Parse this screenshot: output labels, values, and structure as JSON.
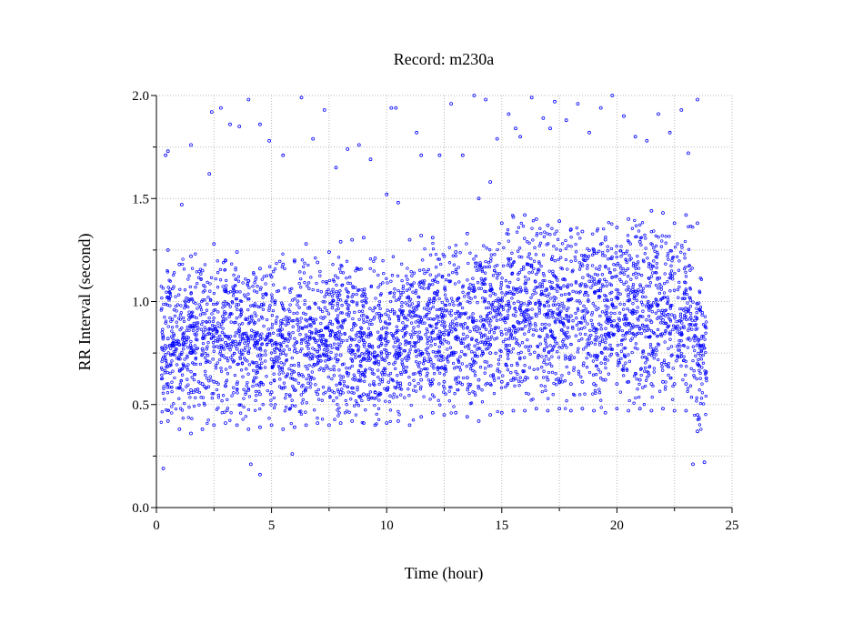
{
  "chart_data": {
    "type": "scatter",
    "title": "Record:  m230a",
    "xlabel": "Time (hour)",
    "ylabel": "RR Interval (second)",
    "xlim": [
      0,
      25
    ],
    "ylim": [
      0.0,
      2.0
    ],
    "x_ticks": [
      "0",
      "5",
      "10",
      "15",
      "20",
      "25"
    ],
    "y_ticks": [
      "0.0",
      "0.5",
      "1.0",
      "1.5",
      "2.0"
    ],
    "grid": true,
    "legend": "none",
    "marker_color": "#0000ff",
    "marker": "small hollow circle",
    "points": [
      [
        0.3,
        0.19
      ],
      [
        0.4,
        1.71
      ],
      [
        0.5,
        1.73
      ],
      [
        1.1,
        1.47
      ],
      [
        1.5,
        1.76
      ],
      [
        2.3,
        1.62
      ],
      [
        2.4,
        1.92
      ],
      [
        2.8,
        1.94
      ],
      [
        3.2,
        1.86
      ],
      [
        3.6,
        1.85
      ],
      [
        4.0,
        1.98
      ],
      [
        4.5,
        1.86
      ],
      [
        4.1,
        0.21
      ],
      [
        4.5,
        0.16
      ],
      [
        4.9,
        1.78
      ],
      [
        5.5,
        1.71
      ],
      [
        5.9,
        0.26
      ],
      [
        6.3,
        1.99
      ],
      [
        6.8,
        1.79
      ],
      [
        7.3,
        1.93
      ],
      [
        7.8,
        1.65
      ],
      [
        8.3,
        1.74
      ],
      [
        8.8,
        1.76
      ],
      [
        9.3,
        1.69
      ],
      [
        10.2,
        1.94
      ],
      [
        10.4,
        1.94
      ],
      [
        11.3,
        1.82
      ],
      [
        11.5,
        1.71
      ],
      [
        12.3,
        1.71
      ],
      [
        12.8,
        1.96
      ],
      [
        13.3,
        1.71
      ],
      [
        13.8,
        2.0
      ],
      [
        14.3,
        1.98
      ],
      [
        14.8,
        1.79
      ],
      [
        15.3,
        1.91
      ],
      [
        15.6,
        1.84
      ],
      [
        15.8,
        1.8
      ],
      [
        16.3,
        1.99
      ],
      [
        16.8,
        1.89
      ],
      [
        17.1,
        1.84
      ],
      [
        17.3,
        1.97
      ],
      [
        17.8,
        1.88
      ],
      [
        18.3,
        1.96
      ],
      [
        18.8,
        1.82
      ],
      [
        19.3,
        1.94
      ],
      [
        19.8,
        2.0
      ],
      [
        20.3,
        1.9
      ],
      [
        20.8,
        1.8
      ],
      [
        21.3,
        1.78
      ],
      [
        21.8,
        1.91
      ],
      [
        22.3,
        1.82
      ],
      [
        22.8,
        1.93
      ],
      [
        23.1,
        1.72
      ],
      [
        23.5,
        1.98
      ],
      [
        23.3,
        0.21
      ],
      [
        23.8,
        0.22
      ],
      [
        0.5,
        1.25
      ],
      [
        1.0,
        1.18
      ],
      [
        1.5,
        1.22
      ],
      [
        2.0,
        1.15
      ],
      [
        2.5,
        1.28
      ],
      [
        3.0,
        1.2
      ],
      [
        3.5,
        1.24
      ],
      [
        4.0,
        1.1
      ],
      [
        4.5,
        1.16
      ],
      [
        5.0,
        1.12
      ],
      [
        5.5,
        1.18
      ],
      [
        6.0,
        1.2
      ],
      [
        6.5,
        1.28
      ],
      [
        7.0,
        1.19
      ],
      [
        7.5,
        1.24
      ],
      [
        8.0,
        1.29
      ],
      [
        8.5,
        1.3
      ],
      [
        9.0,
        1.31
      ],
      [
        9.5,
        1.21
      ],
      [
        10.0,
        1.52
      ],
      [
        10.5,
        1.48
      ],
      [
        11.0,
        1.3
      ],
      [
        11.5,
        1.32
      ],
      [
        12.0,
        1.31
      ],
      [
        12.5,
        1.22
      ],
      [
        13.0,
        1.24
      ],
      [
        13.5,
        1.33
      ],
      [
        14.0,
        1.5
      ],
      [
        14.5,
        1.58
      ],
      [
        15.0,
        1.38
      ],
      [
        15.5,
        1.41
      ],
      [
        16.0,
        1.42
      ],
      [
        16.5,
        1.4
      ],
      [
        17.0,
        1.37
      ],
      [
        17.5,
        1.39
      ],
      [
        18.0,
        1.35
      ],
      [
        18.5,
        1.34
      ],
      [
        19.0,
        1.25
      ],
      [
        19.5,
        1.3
      ],
      [
        20.0,
        1.36
      ],
      [
        20.5,
        1.4
      ],
      [
        21.0,
        1.29
      ],
      [
        21.5,
        1.44
      ],
      [
        22.0,
        1.43
      ],
      [
        22.5,
        1.38
      ],
      [
        23.0,
        1.42
      ],
      [
        23.5,
        1.38
      ],
      [
        0.5,
        0.82
      ],
      [
        1.0,
        0.79
      ],
      [
        1.5,
        0.75
      ],
      [
        2.0,
        0.77
      ],
      [
        2.5,
        0.78
      ],
      [
        3.0,
        0.8
      ],
      [
        3.5,
        0.77
      ],
      [
        4.0,
        0.75
      ],
      [
        4.5,
        0.74
      ],
      [
        5.0,
        0.72
      ],
      [
        5.5,
        0.75
      ],
      [
        6.0,
        0.76
      ],
      [
        6.5,
        0.74
      ],
      [
        7.0,
        0.73
      ],
      [
        7.5,
        0.72
      ],
      [
        8.0,
        0.74
      ],
      [
        8.5,
        0.76
      ],
      [
        9.0,
        0.72
      ],
      [
        9.5,
        0.7
      ],
      [
        10.0,
        0.75
      ],
      [
        10.5,
        0.78
      ],
      [
        11.0,
        0.8
      ],
      [
        11.5,
        0.82
      ],
      [
        12.0,
        0.85
      ],
      [
        12.5,
        0.84
      ],
      [
        13.0,
        0.82
      ],
      [
        13.5,
        0.83
      ],
      [
        14.0,
        0.62
      ],
      [
        14.5,
        0.75
      ],
      [
        15.0,
        0.84
      ],
      [
        15.5,
        0.88
      ],
      [
        16.0,
        0.91
      ],
      [
        16.5,
        0.93
      ],
      [
        17.0,
        0.94
      ],
      [
        17.5,
        0.94
      ],
      [
        18.0,
        0.93
      ],
      [
        18.5,
        0.92
      ],
      [
        19.0,
        0.86
      ],
      [
        19.5,
        0.84
      ],
      [
        20.0,
        0.88
      ],
      [
        20.5,
        0.89
      ],
      [
        21.0,
        0.87
      ],
      [
        21.5,
        0.9
      ],
      [
        22.0,
        0.91
      ],
      [
        22.5,
        0.93
      ],
      [
        23.0,
        0.95
      ],
      [
        23.5,
        0.7
      ],
      [
        0.5,
        0.6
      ],
      [
        1.0,
        0.58
      ],
      [
        1.5,
        0.57
      ],
      [
        2.0,
        0.6
      ],
      [
        2.5,
        0.61
      ],
      [
        3.0,
        0.59
      ],
      [
        3.5,
        0.6
      ],
      [
        4.0,
        0.57
      ],
      [
        4.5,
        0.55
      ],
      [
        5.0,
        0.56
      ],
      [
        5.5,
        0.58
      ],
      [
        6.0,
        0.57
      ],
      [
        6.5,
        0.58
      ],
      [
        7.0,
        0.55
      ],
      [
        7.5,
        0.57
      ],
      [
        8.0,
        0.56
      ],
      [
        8.5,
        0.58
      ],
      [
        9.0,
        0.55
      ],
      [
        9.5,
        0.56
      ],
      [
        10.0,
        0.57
      ],
      [
        10.5,
        0.59
      ],
      [
        11.0,
        0.6
      ],
      [
        11.5,
        0.62
      ],
      [
        12.0,
        0.62
      ],
      [
        12.5,
        0.61
      ],
      [
        13.0,
        0.62
      ],
      [
        13.5,
        0.63
      ],
      [
        14.0,
        0.58
      ],
      [
        14.5,
        0.6
      ],
      [
        15.0,
        0.61
      ],
      [
        15.5,
        0.62
      ],
      [
        16.0,
        0.62
      ],
      [
        16.5,
        0.63
      ],
      [
        17.0,
        0.62
      ],
      [
        17.5,
        0.61
      ],
      [
        18.0,
        0.6
      ],
      [
        18.5,
        0.61
      ],
      [
        19.0,
        0.6
      ],
      [
        19.5,
        0.62
      ],
      [
        20.0,
        0.6
      ],
      [
        20.5,
        0.61
      ],
      [
        21.0,
        0.62
      ],
      [
        21.5,
        0.6
      ],
      [
        22.0,
        0.61
      ],
      [
        22.5,
        0.6
      ],
      [
        23.0,
        0.6
      ],
      [
        23.5,
        0.45
      ],
      [
        0.5,
        0.42
      ],
      [
        1.0,
        0.38
      ],
      [
        1.5,
        0.36
      ],
      [
        2.0,
        0.38
      ],
      [
        2.5,
        0.4
      ],
      [
        3.0,
        0.41
      ],
      [
        3.5,
        0.4
      ],
      [
        4.0,
        0.38
      ],
      [
        4.5,
        0.39
      ],
      [
        5.0,
        0.4
      ],
      [
        5.5,
        0.38
      ],
      [
        6.0,
        0.39
      ],
      [
        6.5,
        0.4
      ],
      [
        7.0,
        0.41
      ],
      [
        7.5,
        0.4
      ],
      [
        8.0,
        0.41
      ],
      [
        8.5,
        0.42
      ],
      [
        9.0,
        0.41
      ],
      [
        9.5,
        0.4
      ],
      [
        10.0,
        0.41
      ],
      [
        10.5,
        0.42
      ],
      [
        11.0,
        0.4
      ],
      [
        11.5,
        0.44
      ],
      [
        12.0,
        0.46
      ],
      [
        12.5,
        0.45
      ],
      [
        13.0,
        0.46
      ],
      [
        13.5,
        0.44
      ],
      [
        14.0,
        0.42
      ],
      [
        14.5,
        0.45
      ],
      [
        15.0,
        0.46
      ],
      [
        15.5,
        0.47
      ],
      [
        16.0,
        0.47
      ],
      [
        16.5,
        0.48
      ],
      [
        17.0,
        0.47
      ],
      [
        17.5,
        0.48
      ],
      [
        18.0,
        0.47
      ],
      [
        18.5,
        0.48
      ],
      [
        19.0,
        0.47
      ],
      [
        19.5,
        0.46
      ],
      [
        20.0,
        0.48
      ],
      [
        20.5,
        0.47
      ],
      [
        21.0,
        0.48
      ],
      [
        21.5,
        0.47
      ],
      [
        22.0,
        0.48
      ],
      [
        22.5,
        0.47
      ],
      [
        23.0,
        0.47
      ],
      [
        23.5,
        0.37
      ]
    ],
    "density_bands": [
      {
        "x0": 0.2,
        "x1": 11.2,
        "y0": 0.38,
        "y1": 1.25
      },
      {
        "x0": 11.2,
        "x1": 14.0,
        "y0": 0.45,
        "y1": 1.3
      },
      {
        "x0": 14.0,
        "x1": 15.2,
        "y0": 0.45,
        "y1": 1.35
      },
      {
        "x0": 15.2,
        "x1": 19.6,
        "y0": 0.46,
        "y1": 1.43
      },
      {
        "x0": 19.6,
        "x1": 23.3,
        "y0": 0.47,
        "y1": 1.45
      },
      {
        "x0": 23.3,
        "x1": 23.9,
        "y0": 0.35,
        "y1": 1.2
      }
    ]
  }
}
